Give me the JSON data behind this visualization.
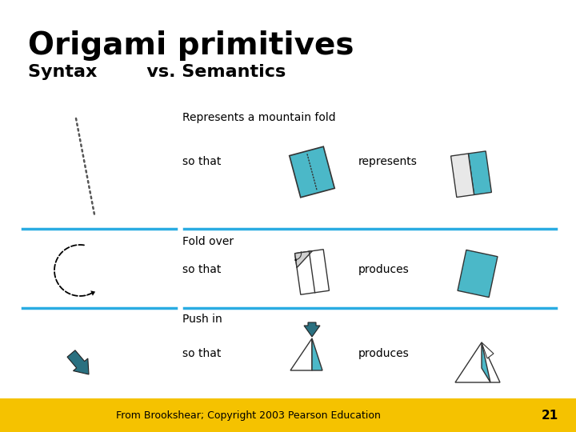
{
  "title": "Origami primitives",
  "subtitle": "Syntax        vs. Semantics",
  "background_color": "#ffffff",
  "footer_color": "#F5C200",
  "footer_text": "From Brookshear; Copyright 2003 Pearson Education",
  "page_number": "21",
  "teal_color": "#4BB8C8",
  "dark_teal": "#2A7080",
  "line_color": "#2AACE2",
  "row1_label": "Represents a mountain fold",
  "row1_sub": "so that",
  "row1_mid": "represents",
  "row2_label": "Fold over",
  "row2_sub": "so that",
  "row2_mid": "produces",
  "row3_label": "Push in",
  "row3_sub": "so that",
  "row3_mid": "produces"
}
